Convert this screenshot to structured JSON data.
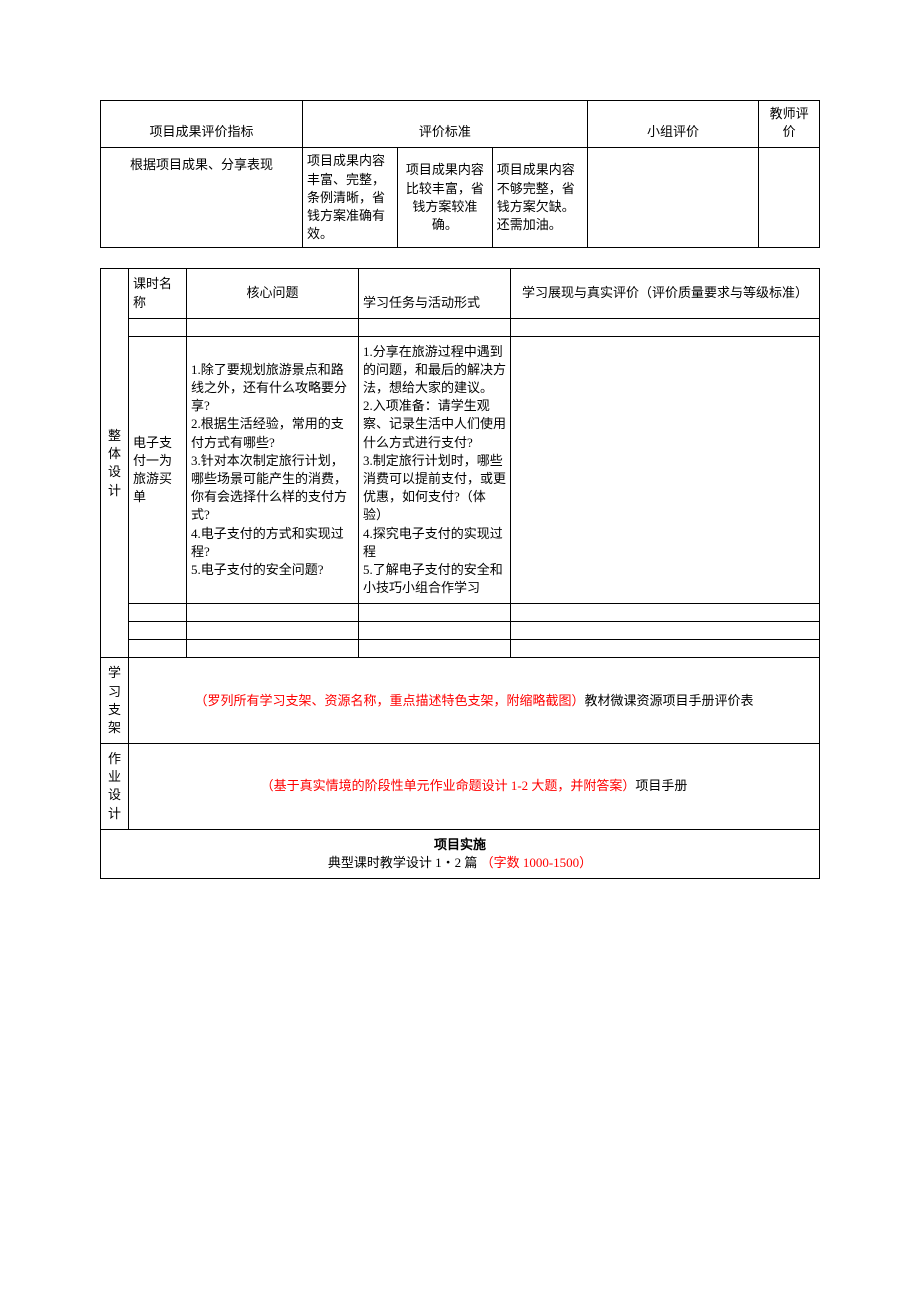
{
  "table1": {
    "headers": {
      "indicator": "项目成果评价指标",
      "criteria": "评价标准",
      "group_eval": "小组评价",
      "teacher_eval": "教师评价"
    },
    "row_label": "根据项目成果、分享表现",
    "criteria_cells": [
      "项目成果内容丰富、完整，条例清晰，省钱方案准确有效。",
      "项目成果内容比较丰富，省钱方案较准确。",
      "项目成果内容不够完整，省钱方案欠缺。还需加油。"
    ]
  },
  "table2": {
    "side_labels": {
      "overall_design": "整体设计",
      "learning_support": "学习支架",
      "homework_design": "作业设计"
    },
    "headers": {
      "lesson_name": "课时名称",
      "core_question": "核心问题",
      "tasks": "学习任务与活动形式",
      "evaluation": "学习展现与真实评价（评价质量要求与等级标准）"
    },
    "lesson_name_text": "电子支付一为旅游买单",
    "core_questions": "1.除了要规划旅游景点和路线之外，还有什么攻略要分享?\n2.根据生活经验，常用的支付方式有哪些?\n3.针对本次制定旅行计划，哪些场景可能产生的消费，你有会选择什么样的支付方式?\n4.电子支付的方式和实现过程?\n5.电子支付的安全问题?",
    "tasks": "1.分享在旅游过程中遇到的问题，和最后的解决方法，想给大家的建议。\n2.入项准备：请学生观察、记录生活中人们使用什么方式进行支付?\n3.制定旅行计划时，哪些消费可以提前支付，或更优惠，如何支付?（体验）\n4.探究电子支付的实现过程\n5.了解电子支付的安全和小技巧小组合作学习",
    "learning_support_text_red": "（罗列所有学习支架、资源名称，重点描述特色支架，附缩略截图）",
    "learning_support_text_black": "教材微课资源项目手册评价表",
    "homework_text_red": "（基于真实情境的阶段性单元作业命题设计 1-2 大题，并附答案）",
    "homework_text_black": "项目手册",
    "section_title": "项目实施",
    "section_sub_black": "典型课时教学设计 1・2 篇",
    "section_sub_red": "（字数 1000-1500）"
  },
  "colors": {
    "text": "#000000",
    "red": "#ff0000",
    "border": "#000000",
    "background": "#ffffff"
  }
}
